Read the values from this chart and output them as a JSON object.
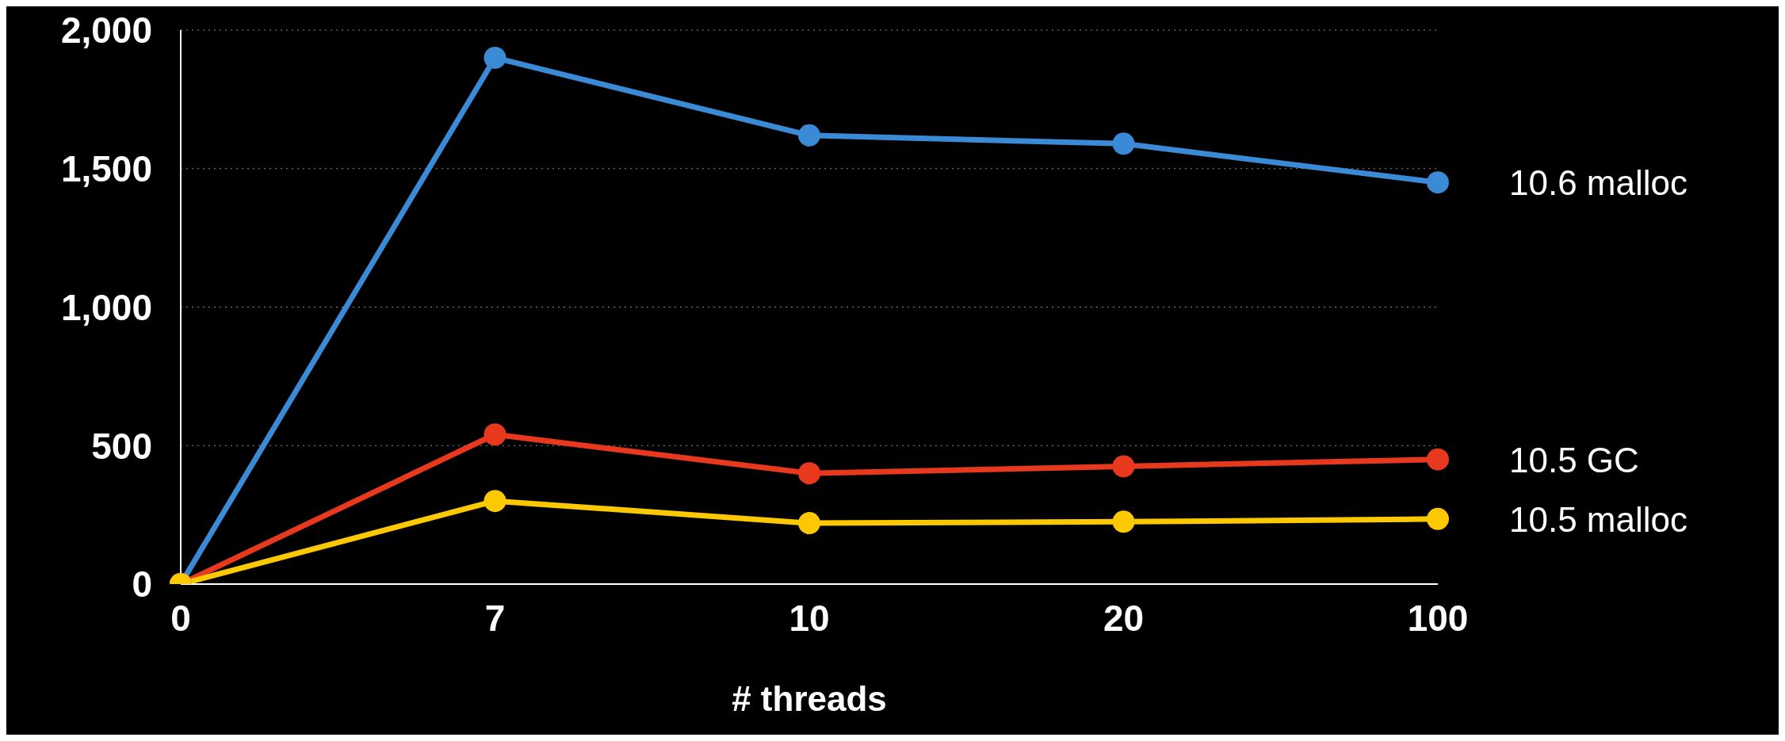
{
  "chart_data": {
    "type": "line",
    "xlabel": "# threads",
    "categories": [
      "0",
      "7",
      "10",
      "20",
      "100"
    ],
    "series": [
      {
        "name": "10.6 malloc",
        "color": "#3a8ad6",
        "values": [
          0,
          1900,
          1620,
          1590,
          1450
        ]
      },
      {
        "name": "10.5 GC",
        "color": "#e8391f",
        "values": [
          0,
          540,
          400,
          425,
          450
        ]
      },
      {
        "name": "10.5 malloc",
        "color": "#fcc800",
        "values": [
          0,
          300,
          220,
          225,
          235
        ]
      }
    ],
    "ylim": [
      0,
      2000
    ],
    "yticks": [
      0,
      {
        "value": 500,
        "label": "500"
      },
      {
        "value": 1000,
        "label": "1,000"
      },
      {
        "value": 1500,
        "label": "1,500"
      },
      {
        "value": 2000,
        "label": "2,000"
      }
    ],
    "grid": "y",
    "marker": "circle",
    "line_style": "solid"
  }
}
